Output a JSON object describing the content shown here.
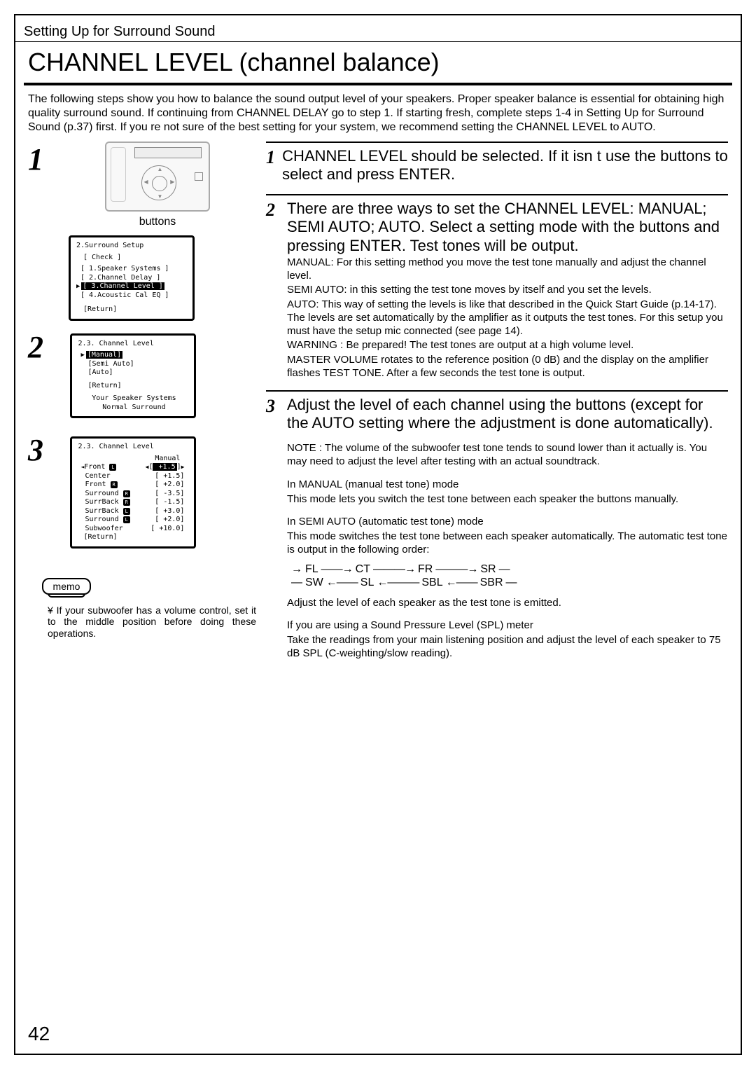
{
  "section_tag": "Setting Up for Surround Sound",
  "title": "CHANNEL LEVEL (channel balance)",
  "intro": "The following steps show you how to balance the sound output level of your speakers. Proper speaker balance is essential for obtaining high quality surround sound. If continuing from CHANNEL DELAY go to step 1. If starting fresh, complete steps 1-4 in   Setting Up for Surround Sound   (p.37) first. If you re not sure of the best setting for your system, we recommend setting the CHANNEL LEVEL to AUTO.",
  "left": {
    "buttons_label": "buttons",
    "screen1": {
      "title": "2.Surround Setup",
      "check": "[ Check ]",
      "items": [
        "[ 1.Speaker Systems ]",
        "[ 2.Channel Delay ]",
        "[ 3.Channel Level ]",
        "[ 4.Acoustic Cal EQ ]"
      ],
      "ret": "[Return]"
    },
    "screen2": {
      "title": "2.3. Channel  Level",
      "items": [
        "[Manual]",
        "[Semi  Auto]",
        "[Auto]"
      ],
      "ret": "[Return]",
      "foot1": "Your  Speaker  Systems",
      "foot2": "Normal  Surround"
    },
    "screen3": {
      "title": "2.3. Channel  Level",
      "mode": "Manual",
      "rows": [
        {
          "n": "Front",
          "i": "L",
          "v": "+1.5"
        },
        {
          "n": "Center",
          "i": "",
          "v": "+1.5"
        },
        {
          "n": "Front",
          "i": "R",
          "v": "+2.0"
        },
        {
          "n": "Surround",
          "i": "R",
          "v": "-3.5"
        },
        {
          "n": "SurrBack",
          "i": "R",
          "v": "-1.5"
        },
        {
          "n": "SurrBack",
          "i": "L",
          "v": "+3.0"
        },
        {
          "n": "Surround",
          "i": "L",
          "v": "+2.0"
        },
        {
          "n": "Subwoofer",
          "i": "",
          "v": "+10.0"
        }
      ],
      "ret": "[Return]"
    },
    "memo_label": "memo",
    "memo_text": "¥ If your subwoofer has a volume control, set it to the middle position before doing these operations."
  },
  "right": {
    "step1": {
      "head": "CHANNEL LEVEL should be selected. If it isn  t use the           buttons to select and press ENTER."
    },
    "step2": {
      "head": "There are three ways to set the CHANNEL LEVEL: MANUAL; SEMI AUTO; AUTO. Select a setting mode with the             buttons and pressing ENTER. Test tones will be output.",
      "p1": "MANUAL:  For this setting method you move the test tone manually and adjust the channel level.",
      "p2": "SEMI AUTO:  in this setting the test tone moves by itself and you set the levels.",
      "p3": "AUTO:  This way of setting the levels is like that described in the Quick Start Guide (p.14-17). The levels are set automatically by the amplifier as it outputs the test tones. For this setup you must have the setup mic connected (see page 14).",
      "p4": "WARNING :  Be prepared! The test tones are output at a high volume level.",
      "p5": "MASTER VOLUME rotates to the reference position (0 dB) and the display on the amplifier flashes TEST TONE. After a few seconds the test tone is output."
    },
    "step3": {
      "head": "Adjust the level of each channel using the          buttons (except for the AUTO setting where the adjustment is done automatically).",
      "note": "NOTE : The volume of the subwoofer test tone tends to sound lower than it actually is. You may need to adjust the level after testing with an actual soundtrack.",
      "m1a": "In MANUAL (manual test tone) mode",
      "m1b": "This mode lets you switch the test tone between each speaker the         buttons manually.",
      "m2a": "In SEMI AUTO (automatic test tone) mode",
      "m2b": "This mode switches the test tone between each speaker automatically. The automatic test tone is output in the following order:",
      "flow_top": [
        "FL",
        "CT",
        "FR",
        "SR"
      ],
      "flow_bot": [
        "SW",
        "SL",
        "SBL",
        "SBR"
      ],
      "m2c": "Adjust the level of each speaker as the test tone is emitted.",
      "m3a": "If you are using a Sound Pressure Level (SPL) meter",
      "m3b": "Take the readings from your main listening position and adjust the level of each speaker to 75 dB SPL (C-weighting/slow reading)."
    }
  },
  "page_number": "42"
}
